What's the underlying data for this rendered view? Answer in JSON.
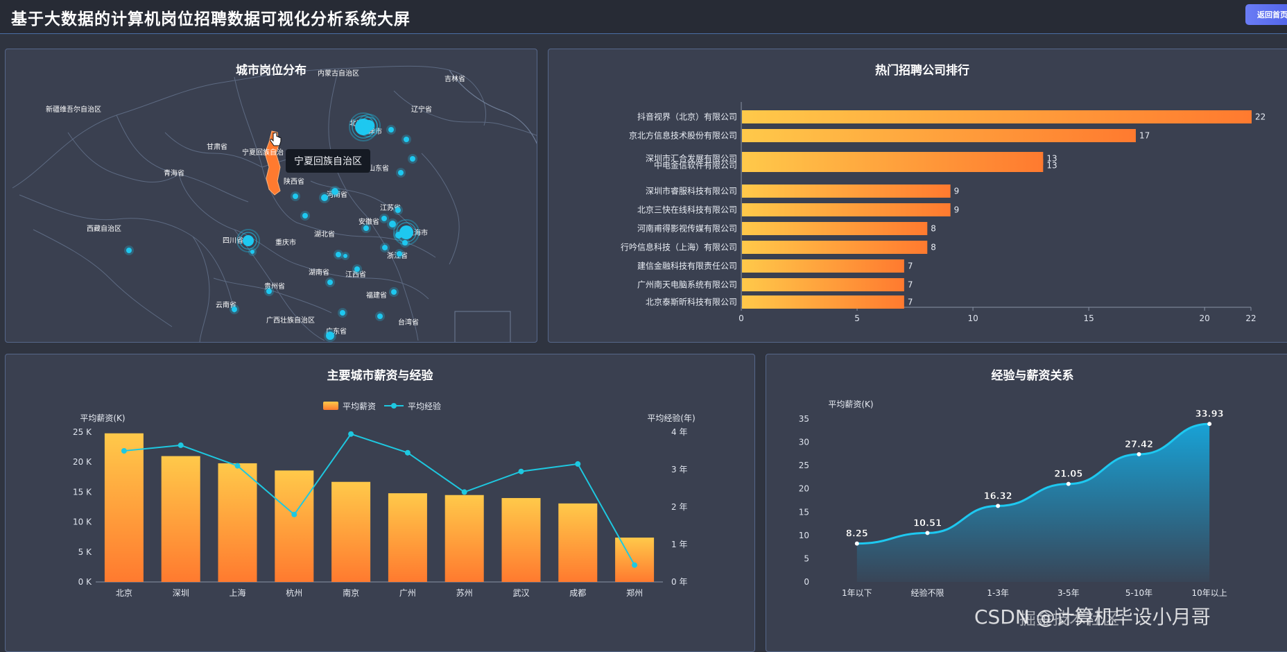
{
  "header": {
    "title": "基于大数据的计算机岗位招聘数据可视化分析系统大屏",
    "back_label": "返回首页"
  },
  "colors": {
    "accent": "#1ec8f0",
    "bar_orange_start": "#ffc94a",
    "bar_orange_end": "#ff7a2f",
    "highlight_region": "#ff7a2f",
    "line_cyan": "#1ec8e0"
  },
  "map_panel": {
    "title": "城市岗位分布",
    "tooltip": "宁夏回族自治区",
    "cursor_icon": "hand-pointer-icon",
    "region_labels": [
      "内蒙古自治区",
      "吉林省",
      "辽宁省",
      "新疆维吾尔自治区",
      "甘肃省",
      "宁夏回族自治",
      "青海省",
      "山东省",
      "陕西省",
      "河南省",
      "江苏省",
      "安徽省",
      "西藏自治区",
      "四川省",
      "重庆市",
      "湖北省",
      "浙江省",
      "湖南省",
      "江西省",
      "贵州省",
      "福建省",
      "云南省",
      "广西壮族自治区",
      "广东省",
      "台湾省",
      "北京",
      "天津市",
      "上海市"
    ]
  },
  "company_panel": {
    "title": "热门招聘公司排行",
    "chart_data": {
      "type": "bar",
      "orientation": "horizontal",
      "title": "热门招聘公司排行",
      "categories": [
        "抖音视界（北京）有限公司",
        "京北方信息技术股份有限公司",
        "深圳市汇合发展有限公司",
        "中电金信软件有限公司",
        "深圳市睿服科技有限公司",
        "北京三快在线科技有限公司",
        "河南甫得影视传媒有限公司",
        "行吟信息科技（上海）有限公司",
        "建信金融科技有限责任公司",
        "广州南天电脑系统有限公司",
        "北京泰斯昕科技有限公司"
      ],
      "values": [
        22,
        17,
        13,
        13,
        9,
        9,
        8,
        8,
        7,
        7,
        7
      ],
      "xticks": [
        "0",
        "5",
        "10",
        "15",
        "20",
        "22"
      ],
      "xlim": [
        0,
        22
      ]
    }
  },
  "city_panel": {
    "title": "主要城市薪资与经验",
    "legend_salary": "平均薪资",
    "legend_exp": "平均经验",
    "ylabel_left": "平均薪资(K)",
    "ylabel_right": "平均经验(年)",
    "chart_data": {
      "type": "bar",
      "title": "主要城市薪资与经验",
      "categories": [
        "北京",
        "深圳",
        "上海",
        "杭州",
        "南京",
        "广州",
        "苏州",
        "武汉",
        "成都",
        "郑州"
      ],
      "series": [
        {
          "name": "平均薪资",
          "type": "bar",
          "axis": "left",
          "values": [
            24.8,
            21,
            19.8,
            18.6,
            16.7,
            14.8,
            14.5,
            14,
            13.1,
            7.4
          ]
        },
        {
          "name": "平均经验",
          "type": "line",
          "axis": "right",
          "values": [
            3.5,
            3.65,
            3.1,
            1.8,
            3.95,
            3.45,
            2.4,
            2.95,
            3.15,
            0.45
          ]
        }
      ],
      "yleft_ticks": [
        "0 K",
        "5 K",
        "10 K",
        "15 K",
        "20 K",
        "25 K"
      ],
      "yleft_lim": [
        0,
        25
      ],
      "yright_ticks": [
        "0 年",
        "1 年",
        "2 年",
        "3 年",
        "4 年"
      ],
      "yright_lim": [
        0,
        4
      ]
    }
  },
  "exp_panel": {
    "title": "经验与薪资关系",
    "ylabel": "平均薪资(K)",
    "chart_data": {
      "type": "area",
      "title": "经验与薪资关系",
      "categories": [
        "1年以下",
        "经验不限",
        "1-3年",
        "3-5年",
        "5-10年",
        "10年以上"
      ],
      "values": [
        8.25,
        10.51,
        16.32,
        21.05,
        27.42,
        33.93
      ],
      "labels": [
        "8.25",
        "10.51",
        "16.32",
        "21.05",
        "27.42",
        "33.93"
      ],
      "yticks": [
        "0",
        "5",
        "10",
        "15",
        "20",
        "25",
        "30",
        "35"
      ],
      "ylim": [
        0,
        35
      ]
    }
  },
  "watermark": "CSDN @计算机毕设小月哥",
  "watermark_overlay": "掘金技术社区"
}
